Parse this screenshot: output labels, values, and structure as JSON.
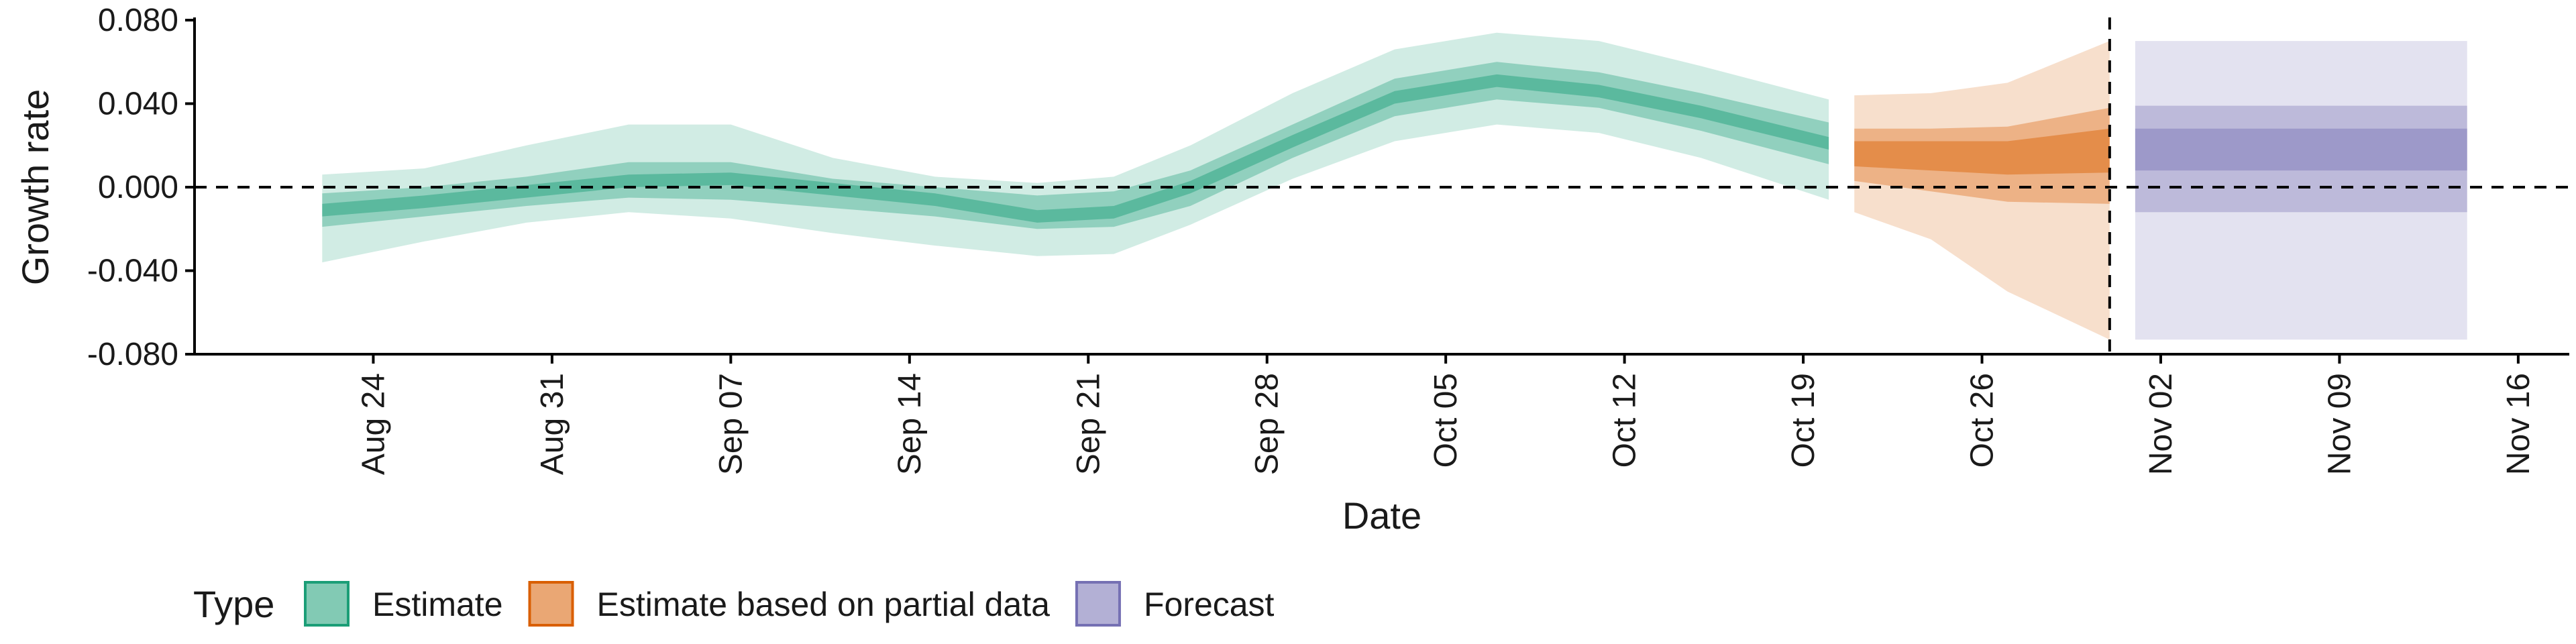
{
  "chart_data": {
    "type": "area",
    "title": "",
    "xlabel": "Date",
    "ylabel": "Growth rate",
    "ylim": [
      -0.08,
      0.08
    ],
    "xlim": [
      "2020-08-17",
      "2020-11-18"
    ],
    "y_ticks": [
      {
        "value": 0.08,
        "label": "0.080"
      },
      {
        "value": 0.04,
        "label": "0.040"
      },
      {
        "value": 0.0,
        "label": "0.000"
      },
      {
        "value": -0.04,
        "label": "-0.040"
      },
      {
        "value": -0.08,
        "label": "-0.080"
      }
    ],
    "x_ticks": [
      {
        "date": "2020-08-24",
        "label": "Aug 24"
      },
      {
        "date": "2020-08-31",
        "label": "Aug 31"
      },
      {
        "date": "2020-09-07",
        "label": "Sep 07"
      },
      {
        "date": "2020-09-14",
        "label": "Sep 14"
      },
      {
        "date": "2020-09-21",
        "label": "Sep 21"
      },
      {
        "date": "2020-09-28",
        "label": "Sep 28"
      },
      {
        "date": "2020-10-05",
        "label": "Oct 05"
      },
      {
        "date": "2020-10-12",
        "label": "Oct 12"
      },
      {
        "date": "2020-10-19",
        "label": "Oct 19"
      },
      {
        "date": "2020-10-26",
        "label": "Oct 26"
      },
      {
        "date": "2020-11-02",
        "label": "Nov 02"
      },
      {
        "date": "2020-11-09",
        "label": "Nov 09"
      },
      {
        "date": "2020-11-16",
        "label": "Nov 16"
      }
    ],
    "reference_lines": {
      "hline_y": 0.0,
      "vline_date": "2020-10-31"
    },
    "legend": {
      "title": "Type",
      "position": "bottom-left",
      "entries": [
        {
          "label": "Estimate",
          "color": "#1b9e77"
        },
        {
          "label": "Estimate based on partial data",
          "color": "#d95f02"
        },
        {
          "label": "Forecast",
          "color": "#7570b3"
        }
      ]
    },
    "series": [
      {
        "name": "Estimate",
        "color": "#1b9e77",
        "points": [
          {
            "date": "2020-08-22",
            "median": -0.011,
            "lower_20": -0.014,
            "upper_20": -0.008,
            "lower_50": -0.019,
            "upper_50": -0.003,
            "lower_90": -0.036,
            "upper_90": 0.006
          },
          {
            "date": "2020-08-26",
            "median": -0.007,
            "lower_20": -0.01,
            "upper_20": -0.004,
            "lower_50": -0.014,
            "upper_50": 0.0,
            "lower_90": -0.026,
            "upper_90": 0.009
          },
          {
            "date": "2020-08-30",
            "median": -0.002,
            "lower_20": -0.005,
            "upper_20": 0.001,
            "lower_50": -0.009,
            "upper_50": 0.005,
            "lower_90": -0.017,
            "upper_90": 0.02
          },
          {
            "date": "2020-09-03",
            "median": 0.003,
            "lower_20": 0.0,
            "upper_20": 0.006,
            "lower_50": -0.005,
            "upper_50": 0.012,
            "lower_90": -0.012,
            "upper_90": 0.03
          },
          {
            "date": "2020-09-07",
            "median": 0.004,
            "lower_20": 0.001,
            "upper_20": 0.007,
            "lower_50": -0.006,
            "upper_50": 0.012,
            "lower_90": -0.015,
            "upper_90": 0.03
          },
          {
            "date": "2020-09-11",
            "median": -0.001,
            "lower_20": -0.004,
            "upper_20": 0.002,
            "lower_50": -0.01,
            "upper_50": 0.004,
            "lower_90": -0.022,
            "upper_90": 0.014
          },
          {
            "date": "2020-09-15",
            "median": -0.006,
            "lower_20": -0.009,
            "upper_20": -0.003,
            "lower_50": -0.014,
            "upper_50": 0.0,
            "lower_90": -0.028,
            "upper_90": 0.005
          },
          {
            "date": "2020-09-19",
            "median": -0.014,
            "lower_20": -0.017,
            "upper_20": -0.011,
            "lower_50": -0.02,
            "upper_50": -0.004,
            "lower_90": -0.033,
            "upper_90": 0.002
          },
          {
            "date": "2020-09-22",
            "median": -0.012,
            "lower_20": -0.015,
            "upper_20": -0.009,
            "lower_50": -0.019,
            "upper_50": -0.002,
            "lower_90": -0.032,
            "upper_90": 0.005
          },
          {
            "date": "2020-09-25",
            "median": 0.0,
            "lower_20": -0.003,
            "upper_20": 0.003,
            "lower_50": -0.009,
            "upper_50": 0.008,
            "lower_90": -0.018,
            "upper_90": 0.02
          },
          {
            "date": "2020-09-29",
            "median": 0.022,
            "lower_20": 0.019,
            "upper_20": 0.025,
            "lower_50": 0.014,
            "upper_50": 0.03,
            "lower_90": 0.004,
            "upper_90": 0.045
          },
          {
            "date": "2020-10-03",
            "median": 0.043,
            "lower_20": 0.04,
            "upper_20": 0.046,
            "lower_50": 0.034,
            "upper_50": 0.052,
            "lower_90": 0.022,
            "upper_90": 0.066
          },
          {
            "date": "2020-10-07",
            "median": 0.051,
            "lower_20": 0.048,
            "upper_20": 0.054,
            "lower_50": 0.042,
            "upper_50": 0.06,
            "lower_90": 0.03,
            "upper_90": 0.074
          },
          {
            "date": "2020-10-11",
            "median": 0.046,
            "lower_20": 0.043,
            "upper_20": 0.049,
            "lower_50": 0.038,
            "upper_50": 0.055,
            "lower_90": 0.026,
            "upper_90": 0.07
          },
          {
            "date": "2020-10-15",
            "median": 0.036,
            "lower_20": 0.033,
            "upper_20": 0.039,
            "lower_50": 0.027,
            "upper_50": 0.045,
            "lower_90": 0.014,
            "upper_90": 0.058
          },
          {
            "date": "2020-10-20",
            "median": 0.021,
            "lower_20": 0.018,
            "upper_20": 0.024,
            "lower_50": 0.011,
            "upper_50": 0.031,
            "lower_90": -0.006,
            "upper_90": 0.042
          }
        ]
      },
      {
        "name": "Estimate based on partial data",
        "color": "#d95f02",
        "points": [
          {
            "date": "2020-10-21",
            "median": 0.016,
            "lower_20": 0.01,
            "upper_20": 0.022,
            "lower_50": 0.003,
            "upper_50": 0.028,
            "lower_90": -0.012,
            "upper_90": 0.044
          },
          {
            "date": "2020-10-24",
            "median": 0.015,
            "lower_20": 0.008,
            "upper_20": 0.022,
            "lower_50": -0.002,
            "upper_50": 0.028,
            "lower_90": -0.025,
            "upper_90": 0.045
          },
          {
            "date": "2020-10-27",
            "median": 0.014,
            "lower_20": 0.006,
            "upper_20": 0.022,
            "lower_50": -0.007,
            "upper_50": 0.029,
            "lower_90": -0.05,
            "upper_90": 0.05
          },
          {
            "date": "2020-10-31",
            "median": 0.017,
            "lower_20": 0.007,
            "upper_20": 0.028,
            "lower_50": -0.008,
            "upper_50": 0.038,
            "lower_90": -0.073,
            "upper_90": 0.07
          }
        ]
      },
      {
        "name": "Forecast",
        "color": "#7570b3",
        "points": [
          {
            "date": "2020-11-01",
            "median": 0.018,
            "lower_20": 0.008,
            "upper_20": 0.028,
            "lower_50": -0.012,
            "upper_50": 0.039,
            "lower_90": -0.073,
            "upper_90": 0.07
          },
          {
            "date": "2020-11-14",
            "median": 0.018,
            "lower_20": 0.008,
            "upper_20": 0.028,
            "lower_50": -0.012,
            "upper_50": 0.039,
            "lower_90": -0.073,
            "upper_90": 0.07
          }
        ]
      }
    ]
  }
}
